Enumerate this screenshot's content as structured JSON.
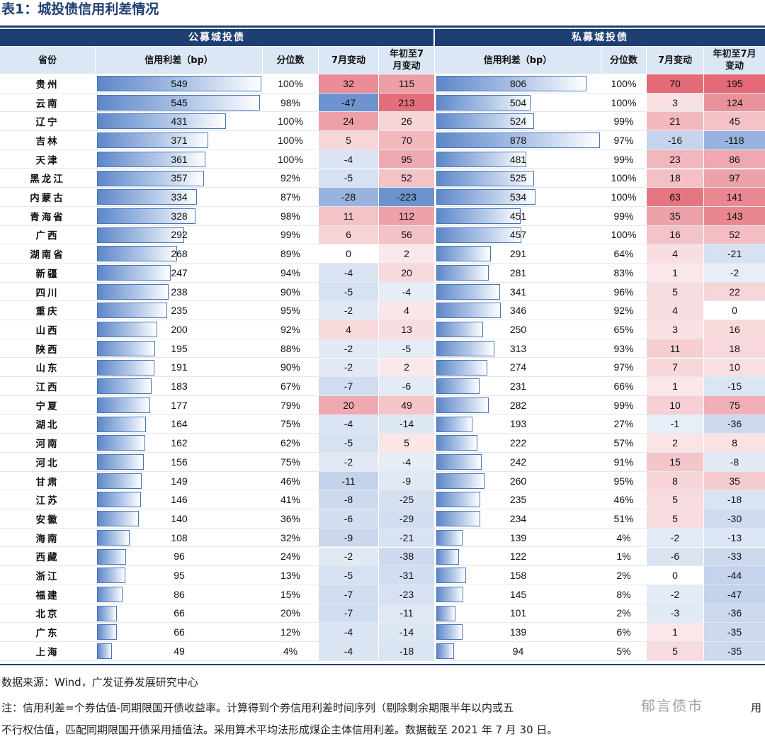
{
  "title": "表1：城投债信用利差情况",
  "groups": {
    "public": "公募城投债",
    "private": "私募城投债"
  },
  "headers": {
    "province": "省份",
    "spread": "信用利差（bp）",
    "pct": "分位数",
    "jul": "7月变动",
    "ytd_l1": "年初至7",
    "ytd_l2": "月变动",
    "spread_priv": "信用利差（bp）",
    "pct_priv": "分位数",
    "jul_priv": "7月变动",
    "ytd_priv_l1": "年初至7月",
    "ytd_priv_l2": "变动"
  },
  "colors": {
    "header": "#1f3f73",
    "bar": "#5d87c9",
    "pos": "#e05a67",
    "neg": "#5d87c9"
  },
  "rows": [
    {
      "prov": "贵州",
      "pub": [
        "549",
        "100%",
        "32",
        "115"
      ],
      "priv": [
        "806",
        "100%",
        "70",
        "195"
      ]
    },
    {
      "prov": "云南",
      "pub": [
        "545",
        "98%",
        "-47",
        "213"
      ],
      "priv": [
        "504",
        "100%",
        "3",
        "124"
      ]
    },
    {
      "prov": "辽宁",
      "pub": [
        "431",
        "100%",
        "24",
        "26"
      ],
      "priv": [
        "524",
        "99%",
        "21",
        "45"
      ]
    },
    {
      "prov": "吉林",
      "pub": [
        "371",
        "100%",
        "5",
        "70"
      ],
      "priv": [
        "878",
        "97%",
        "-16",
        "-118"
      ]
    },
    {
      "prov": "天津",
      "pub": [
        "361",
        "100%",
        "-4",
        "95"
      ],
      "priv": [
        "481",
        "99%",
        "23",
        "86"
      ]
    },
    {
      "prov": "黑龙江",
      "pub": [
        "357",
        "92%",
        "-5",
        "52"
      ],
      "priv": [
        "525",
        "100%",
        "18",
        "97"
      ]
    },
    {
      "prov": "内蒙古",
      "pub": [
        "334",
        "87%",
        "-28",
        "-223"
      ],
      "priv": [
        "534",
        "100%",
        "63",
        "141"
      ]
    },
    {
      "prov": "青海省",
      "pub": [
        "328",
        "98%",
        "11",
        "112"
      ],
      "priv": [
        "451",
        "99%",
        "35",
        "143"
      ]
    },
    {
      "prov": "广西",
      "pub": [
        "292",
        "99%",
        "6",
        "56"
      ],
      "priv": [
        "457",
        "100%",
        "16",
        "52"
      ]
    },
    {
      "prov": "湖南省",
      "pub": [
        "268",
        "89%",
        "0",
        "2"
      ],
      "priv": [
        "291",
        "64%",
        "4",
        "-21"
      ]
    },
    {
      "prov": "新疆",
      "pub": [
        "247",
        "94%",
        "-4",
        "20"
      ],
      "priv": [
        "281",
        "83%",
        "1",
        "-2"
      ]
    },
    {
      "prov": "四川",
      "pub": [
        "238",
        "90%",
        "-5",
        "-4"
      ],
      "priv": [
        "341",
        "96%",
        "5",
        "22"
      ]
    },
    {
      "prov": "重庆",
      "pub": [
        "235",
        "95%",
        "-2",
        "4"
      ],
      "priv": [
        "346",
        "92%",
        "4",
        "0"
      ]
    },
    {
      "prov": "山西",
      "pub": [
        "200",
        "92%",
        "4",
        "13"
      ],
      "priv": [
        "250",
        "65%",
        "3",
        "16"
      ]
    },
    {
      "prov": "陕西",
      "pub": [
        "195",
        "88%",
        "-2",
        "-5"
      ],
      "priv": [
        "313",
        "93%",
        "11",
        "18"
      ]
    },
    {
      "prov": "山东",
      "pub": [
        "191",
        "90%",
        "-2",
        "2"
      ],
      "priv": [
        "274",
        "97%",
        "7",
        "10"
      ]
    },
    {
      "prov": "江西",
      "pub": [
        "183",
        "67%",
        "-7",
        "-6"
      ],
      "priv": [
        "231",
        "66%",
        "1",
        "-15"
      ]
    },
    {
      "prov": "宁夏",
      "pub": [
        "177",
        "79%",
        "20",
        "49"
      ],
      "priv": [
        "282",
        "99%",
        "10",
        "75"
      ]
    },
    {
      "prov": "湖北",
      "pub": [
        "164",
        "75%",
        "-4",
        "-14"
      ],
      "priv": [
        "193",
        "27%",
        "-1",
        "-36"
      ]
    },
    {
      "prov": "河南",
      "pub": [
        "162",
        "62%",
        "-5",
        "5"
      ],
      "priv": [
        "222",
        "57%",
        "2",
        "8"
      ]
    },
    {
      "prov": "河北",
      "pub": [
        "156",
        "75%",
        "-2",
        "-4"
      ],
      "priv": [
        "242",
        "91%",
        "15",
        "-8"
      ]
    },
    {
      "prov": "甘肃",
      "pub": [
        "149",
        "46%",
        "-11",
        "-9"
      ],
      "priv": [
        "260",
        "95%",
        "8",
        "35"
      ]
    },
    {
      "prov": "江苏",
      "pub": [
        "146",
        "41%",
        "-8",
        "-25"
      ],
      "priv": [
        "235",
        "46%",
        "5",
        "-18"
      ]
    },
    {
      "prov": "安徽",
      "pub": [
        "140",
        "36%",
        "-6",
        "-29"
      ],
      "priv": [
        "234",
        "51%",
        "5",
        "-30"
      ]
    },
    {
      "prov": "海南",
      "pub": [
        "108",
        "32%",
        "-9",
        "-21"
      ],
      "priv": [
        "139",
        "4%",
        "-2",
        "-13"
      ]
    },
    {
      "prov": "西藏",
      "pub": [
        "96",
        "24%",
        "-2",
        "-38"
      ],
      "priv": [
        "122",
        "1%",
        "-6",
        "-33"
      ]
    },
    {
      "prov": "浙江",
      "pub": [
        "95",
        "13%",
        "-5",
        "-31"
      ],
      "priv": [
        "158",
        "2%",
        "0",
        "-44"
      ]
    },
    {
      "prov": "福建",
      "pub": [
        "86",
        "15%",
        "-7",
        "-23"
      ],
      "priv": [
        "145",
        "8%",
        "-2",
        "-47"
      ]
    },
    {
      "prov": "北京",
      "pub": [
        "66",
        "20%",
        "-7",
        "-11"
      ],
      "priv": [
        "101",
        "2%",
        "-3",
        "-36"
      ]
    },
    {
      "prov": "广东",
      "pub": [
        "66",
        "12%",
        "-4",
        "-14"
      ],
      "priv": [
        "139",
        "6%",
        "1",
        "-35"
      ]
    },
    {
      "prov": "上海",
      "pub": [
        "49",
        "4%",
        "-4",
        "-18"
      ],
      "priv": [
        "94",
        "5%",
        "5",
        "-35"
      ]
    }
  ],
  "footer": {
    "source": "数据来源：Wind，广发证券发展研究中心",
    "note1": "注：信用利差=个券估值-同期限国开债收益率。计算得到个券信用利差时间序列（剔除剩余期限半年以内或五",
    "note1_tail": "用",
    "note2": "不行权估值，匹配同期限国开债采用插值法。采用算术平均法形成煤企主体信用利差。数据截至 2021 年 7 月 30 日。",
    "watermark": "郁言债市"
  }
}
